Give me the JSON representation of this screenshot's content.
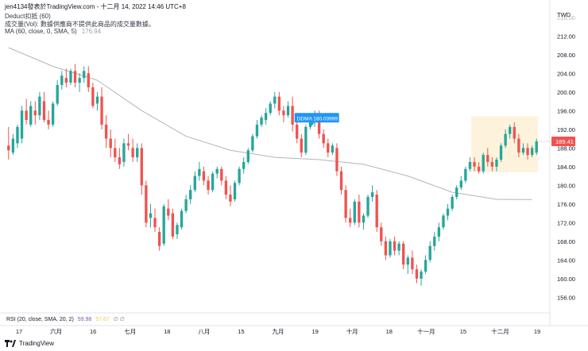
{
  "header": {
    "title": "jen4134發表於TradingView.com - 十二月 14, 2022 14:46 UTC+8",
    "indicator_deduct": "Deduct扣抵 (60)",
    "volume_note": "成交量(Vol): 數據供應商不提供此商品的成交量數據。",
    "ma_label": "MA (60, close, 0, SMA, 5)",
    "ma_value": "176.94"
  },
  "rsi": {
    "label": "RSI (20, close, SMA, 20, 2)",
    "value1": "59.98",
    "value2": "57.67",
    "extra": "∅ ∅"
  },
  "footer": {
    "brand": "TradingView"
  },
  "colors": {
    "up": "#26a69a",
    "down": "#ef5350",
    "ma": "#b2b5be",
    "price_tag": "#ef5350",
    "highlight": "#fdf3dc",
    "deduct_tag": "#2196f3"
  },
  "chart_data": {
    "type": "candlestick",
    "currency": "TWD",
    "ylim": [
      153,
      218
    ],
    "y_ticks": [
      156,
      160,
      164,
      168,
      172,
      176,
      180,
      184,
      188,
      192,
      196,
      200,
      204,
      208,
      212
    ],
    "y_tick_labels": [
      "156.00",
      "160.00",
      "164.00",
      "168.00",
      "172.00",
      "176.00",
      "180.00",
      "184.00",
      "188.00",
      "192.00",
      "196.00",
      "200.00",
      "204.00",
      "208.00",
      "212.00"
    ],
    "y_top_partial": "216.00",
    "x_tick_labels": [
      "17",
      "六月",
      "16",
      "七月",
      "18",
      "八月",
      "15",
      "九月",
      "19",
      "十月",
      "18",
      "十一月",
      "15",
      "十二月",
      "19"
    ],
    "last_price": "189.41",
    "deduct_marker": {
      "label": "DDMA 180.03999",
      "value": 194.3
    },
    "candles": [
      {
        "o": 188.5,
        "h": 192.5,
        "c": 187.5,
        "l": 185.5
      },
      {
        "o": 187,
        "h": 191,
        "c": 190,
        "l": 186.5
      },
      {
        "o": 189,
        "h": 193,
        "c": 192.5,
        "l": 188
      },
      {
        "o": 190,
        "h": 197,
        "c": 196,
        "l": 189
      },
      {
        "o": 196,
        "h": 198.5,
        "c": 194,
        "l": 193
      },
      {
        "o": 193,
        "h": 198,
        "c": 197,
        "l": 192.5
      },
      {
        "o": 196,
        "h": 198,
        "c": 195,
        "l": 193
      },
      {
        "o": 195,
        "h": 200,
        "c": 199,
        "l": 194
      },
      {
        "o": 198,
        "h": 200,
        "c": 194,
        "l": 193.5
      },
      {
        "o": 194,
        "h": 196,
        "c": 193,
        "l": 192
      },
      {
        "o": 193,
        "h": 198,
        "c": 197.5,
        "l": 192.5
      },
      {
        "o": 197.5,
        "h": 202.5,
        "c": 201.5,
        "l": 197
      },
      {
        "o": 201.5,
        "h": 204.5,
        "c": 203.5,
        "l": 200.5
      },
      {
        "o": 203,
        "h": 205,
        "c": 202,
        "l": 201
      },
      {
        "o": 202,
        "h": 205,
        "c": 204.5,
        "l": 201.5
      },
      {
        "o": 204.5,
        "h": 206,
        "c": 202,
        "l": 201
      },
      {
        "o": 202,
        "h": 204,
        "c": 203,
        "l": 200
      },
      {
        "o": 203,
        "h": 205.5,
        "c": 204.5,
        "l": 202
      },
      {
        "o": 204,
        "h": 205.5,
        "c": 201,
        "l": 200
      },
      {
        "o": 201,
        "h": 202,
        "c": 197,
        "l": 196.5
      },
      {
        "o": 197.5,
        "h": 200,
        "c": 199,
        "l": 196
      },
      {
        "o": 199,
        "h": 201,
        "c": 193,
        "l": 192
      },
      {
        "o": 193,
        "h": 195,
        "c": 190,
        "l": 188
      },
      {
        "o": 190,
        "h": 192,
        "c": 188,
        "l": 186
      },
      {
        "o": 188,
        "h": 190,
        "c": 186,
        "l": 185
      },
      {
        "o": 186,
        "h": 188,
        "c": 184.5,
        "l": 183.5
      },
      {
        "o": 185,
        "h": 190,
        "c": 189,
        "l": 184
      },
      {
        "o": 189,
        "h": 191,
        "c": 188.5,
        "l": 187.5
      },
      {
        "o": 188,
        "h": 190,
        "c": 186,
        "l": 185
      },
      {
        "o": 186,
        "h": 189,
        "c": 188,
        "l": 185
      },
      {
        "o": 188,
        "h": 189,
        "c": 180,
        "l": 178
      },
      {
        "o": 180,
        "h": 181,
        "c": 172,
        "l": 171
      },
      {
        "o": 173,
        "h": 176,
        "c": 174,
        "l": 171
      },
      {
        "o": 173,
        "h": 175,
        "c": 171,
        "l": 170
      },
      {
        "o": 170,
        "h": 171,
        "c": 167,
        "l": 166
      },
      {
        "o": 167.5,
        "h": 176,
        "c": 175.5,
        "l": 167
      },
      {
        "o": 175,
        "h": 177,
        "c": 173.5,
        "l": 172.5
      },
      {
        "o": 174,
        "h": 175,
        "c": 169,
        "l": 168.5
      },
      {
        "o": 169.5,
        "h": 172,
        "c": 171.5,
        "l": 168.5
      },
      {
        "o": 171,
        "h": 175,
        "c": 174.5,
        "l": 170.5
      },
      {
        "o": 174.5,
        "h": 178,
        "c": 177,
        "l": 174
      },
      {
        "o": 177,
        "h": 180,
        "c": 179,
        "l": 176
      },
      {
        "o": 179,
        "h": 183,
        "c": 182,
        "l": 178.5
      },
      {
        "o": 182,
        "h": 185,
        "c": 183.5,
        "l": 181
      },
      {
        "o": 183,
        "h": 184,
        "c": 181,
        "l": 180
      },
      {
        "o": 181,
        "h": 182,
        "c": 179,
        "l": 178
      },
      {
        "o": 179,
        "h": 183,
        "c": 182.5,
        "l": 178.5
      },
      {
        "o": 182.5,
        "h": 184,
        "c": 183.5,
        "l": 181.5
      },
      {
        "o": 183.5,
        "h": 184,
        "c": 181,
        "l": 180
      },
      {
        "o": 181,
        "h": 182,
        "c": 178,
        "l": 177
      },
      {
        "o": 178,
        "h": 180,
        "c": 176.5,
        "l": 175.5
      },
      {
        "o": 177,
        "h": 181,
        "c": 180.5,
        "l": 176.5
      },
      {
        "o": 180.5,
        "h": 184,
        "c": 183.5,
        "l": 180
      },
      {
        "o": 183.5,
        "h": 186,
        "c": 185,
        "l": 182.5
      },
      {
        "o": 185,
        "h": 188,
        "c": 187.5,
        "l": 184.5
      },
      {
        "o": 187.5,
        "h": 191,
        "c": 190.5,
        "l": 187
      },
      {
        "o": 190.5,
        "h": 194,
        "c": 193,
        "l": 190
      },
      {
        "o": 193,
        "h": 195,
        "c": 194.5,
        "l": 192.5
      },
      {
        "o": 194,
        "h": 196.5,
        "c": 195.5,
        "l": 193
      },
      {
        "o": 195.5,
        "h": 198,
        "c": 197.5,
        "l": 195
      },
      {
        "o": 197.5,
        "h": 200,
        "c": 199,
        "l": 196.5
      },
      {
        "o": 199,
        "h": 200,
        "c": 196,
        "l": 195
      },
      {
        "o": 196,
        "h": 197,
        "c": 195,
        "l": 193.5
      },
      {
        "o": 195,
        "h": 198,
        "c": 197,
        "l": 194.5
      },
      {
        "o": 197,
        "h": 199,
        "c": 193,
        "l": 191.5
      },
      {
        "o": 193,
        "h": 194,
        "c": 190,
        "l": 189
      },
      {
        "o": 190,
        "h": 191,
        "c": 187,
        "l": 186
      },
      {
        "o": 187,
        "h": 193,
        "c": 192.5,
        "l": 186.5
      },
      {
        "o": 192.5,
        "h": 195,
        "c": 194,
        "l": 192
      },
      {
        "o": 194,
        "h": 196,
        "c": 195,
        "l": 192.5
      },
      {
        "o": 195,
        "h": 196,
        "c": 191,
        "l": 190
      },
      {
        "o": 191,
        "h": 192,
        "c": 189,
        "l": 188
      },
      {
        "o": 189,
        "h": 190,
        "c": 187,
        "l": 186
      },
      {
        "o": 187,
        "h": 189,
        "c": 188.5,
        "l": 186.5
      },
      {
        "o": 188,
        "h": 189,
        "c": 183,
        "l": 182
      },
      {
        "o": 183,
        "h": 184,
        "c": 179,
        "l": 178
      },
      {
        "o": 179,
        "h": 180,
        "c": 173,
        "l": 172
      },
      {
        "o": 173,
        "h": 175,
        "c": 172,
        "l": 171
      },
      {
        "o": 172,
        "h": 177,
        "c": 176.5,
        "l": 171.5
      },
      {
        "o": 176.5,
        "h": 178,
        "c": 172,
        "l": 171
      },
      {
        "o": 172,
        "h": 174,
        "c": 173.5,
        "l": 170.5
      },
      {
        "o": 173.5,
        "h": 178,
        "c": 177.5,
        "l": 173
      },
      {
        "o": 177.5,
        "h": 180,
        "c": 178.5,
        "l": 176.5
      },
      {
        "o": 178,
        "h": 179,
        "c": 171,
        "l": 170
      },
      {
        "o": 171,
        "h": 172,
        "c": 168,
        "l": 167
      },
      {
        "o": 168,
        "h": 169,
        "c": 165,
        "l": 164
      },
      {
        "o": 165,
        "h": 168.5,
        "c": 168,
        "l": 164.5
      },
      {
        "o": 168,
        "h": 169,
        "c": 166,
        "l": 165
      },
      {
        "o": 166,
        "h": 168,
        "c": 167.5,
        "l": 165
      },
      {
        "o": 167.5,
        "h": 168,
        "c": 163,
        "l": 162
      },
      {
        "o": 163,
        "h": 165,
        "c": 164.5,
        "l": 161
      },
      {
        "o": 164.5,
        "h": 166,
        "c": 162,
        "l": 161
      },
      {
        "o": 162,
        "h": 163,
        "c": 160,
        "l": 159
      },
      {
        "o": 160,
        "h": 162,
        "c": 161.5,
        "l": 158.5
      },
      {
        "o": 161.5,
        "h": 165,
        "c": 164,
        "l": 161
      },
      {
        "o": 164,
        "h": 168,
        "c": 167,
        "l": 163.5
      },
      {
        "o": 167,
        "h": 170,
        "c": 169,
        "l": 166
      },
      {
        "o": 169,
        "h": 172,
        "c": 171,
        "l": 168
      },
      {
        "o": 171,
        "h": 174,
        "c": 173.5,
        "l": 170.5
      },
      {
        "o": 173.5,
        "h": 176,
        "c": 175,
        "l": 172.5
      },
      {
        "o": 175,
        "h": 178,
        "c": 177.5,
        "l": 174.5
      },
      {
        "o": 177.5,
        "h": 180,
        "c": 179.5,
        "l": 177
      },
      {
        "o": 179.5,
        "h": 182,
        "c": 181,
        "l": 179
      },
      {
        "o": 181,
        "h": 184,
        "c": 183.5,
        "l": 180.5
      },
      {
        "o": 183.5,
        "h": 186,
        "c": 185,
        "l": 183
      },
      {
        "o": 185,
        "h": 186,
        "c": 184,
        "l": 183
      },
      {
        "o": 184,
        "h": 185,
        "c": 183,
        "l": 182.5
      },
      {
        "o": 183,
        "h": 187,
        "c": 186.5,
        "l": 182.5
      },
      {
        "o": 186.5,
        "h": 188,
        "c": 185,
        "l": 184
      },
      {
        "o": 185,
        "h": 186,
        "c": 184,
        "l": 183
      },
      {
        "o": 184,
        "h": 186,
        "c": 185.5,
        "l": 183
      },
      {
        "o": 185.5,
        "h": 189,
        "c": 188.5,
        "l": 185
      },
      {
        "o": 188.5,
        "h": 192,
        "c": 191,
        "l": 188
      },
      {
        "o": 191,
        "h": 193,
        "c": 192.5,
        "l": 190
      },
      {
        "o": 192.5,
        "h": 193.5,
        "c": 190,
        "l": 189
      },
      {
        "o": 190,
        "h": 191,
        "c": 187,
        "l": 186
      },
      {
        "o": 187,
        "h": 189,
        "c": 188,
        "l": 186.5
      },
      {
        "o": 188,
        "h": 189,
        "c": 186.5,
        "l": 185.5
      },
      {
        "o": 186.5,
        "h": 188.5,
        "c": 188,
        "l": 186
      },
      {
        "o": 187,
        "h": 190,
        "c": 189.41,
        "l": 186.5
      }
    ],
    "ma_line": [
      {
        "i": 0,
        "v": 209.5
      },
      {
        "i": 10,
        "v": 205.5
      },
      {
        "i": 20,
        "v": 202.5
      },
      {
        "i": 30,
        "v": 196
      },
      {
        "i": 40,
        "v": 190.5
      },
      {
        "i": 50,
        "v": 187.5
      },
      {
        "i": 60,
        "v": 186
      },
      {
        "i": 70,
        "v": 185.5
      },
      {
        "i": 80,
        "v": 184.5
      },
      {
        "i": 90,
        "v": 182
      },
      {
        "i": 100,
        "v": 178.5
      },
      {
        "i": 110,
        "v": 177
      },
      {
        "i": 118,
        "v": 176.94
      }
    ]
  }
}
